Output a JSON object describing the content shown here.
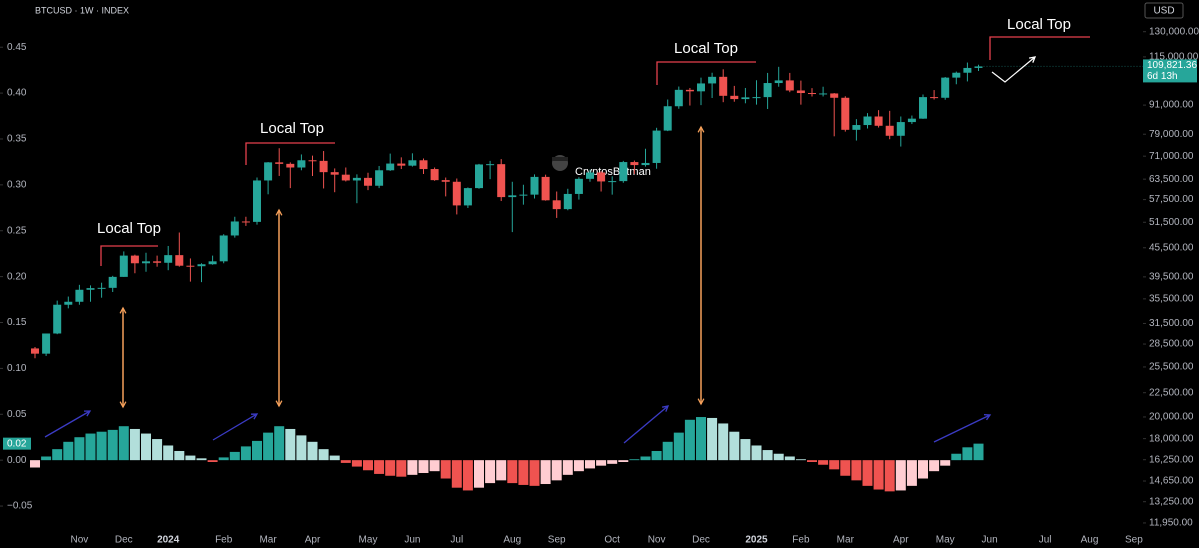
{
  "chart_data": {
    "type": "candlestick",
    "title": "BTCUSD · 1W · INDEX",
    "currency": "USD",
    "categories": [
      null,
      null,
      null,
      null,
      "Nov",
      null,
      null,
      null,
      "Dec",
      null,
      null,
      null,
      "2024",
      null,
      null,
      null,
      null,
      "Feb",
      null,
      null,
      null,
      "Mar",
      null,
      null,
      null,
      "Apr",
      null,
      null,
      null,
      null,
      "May",
      null,
      null,
      null,
      "Jun",
      null,
      null,
      null,
      "Jul",
      null,
      null,
      null,
      null,
      "Aug",
      null,
      null,
      null,
      "Sep",
      null,
      null,
      null,
      null,
      "Oct",
      null,
      null,
      null,
      "Nov",
      null,
      null,
      null,
      "Dec",
      null,
      null,
      null,
      null,
      "2025",
      null,
      null,
      null,
      "Feb",
      null,
      null,
      null,
      "Mar",
      null,
      null,
      null,
      null,
      "Apr",
      null,
      null,
      null,
      "May",
      null,
      null,
      null,
      "Jun",
      null,
      null,
      null,
      null,
      "Jul",
      null,
      null,
      null,
      "Aug",
      null,
      null,
      null,
      "Sep"
    ],
    "open": [
      27900,
      27200,
      30000,
      34500,
      35000,
      37100,
      37400,
      37450,
      39500,
      43800,
      42200,
      42600,
      42300,
      43900,
      41700,
      41600,
      42000,
      42600,
      48300,
      51700,
      51600,
      63100,
      68900,
      68400,
      67200,
      69600,
      69400,
      65700,
      64900,
      63100,
      63900,
      61500,
      66300,
      68500,
      67800,
      69600,
      66700,
      63200,
      62700,
      55900,
      60800,
      68200,
      68300,
      58200,
      58700,
      58900,
      64200,
      57300,
      54900,
      59100,
      63600,
      65600,
      62800,
      62900,
      69000,
      68000,
      68700,
      80400,
      90500,
      98000,
      97300,
      101100,
      104400,
      95200,
      93700,
      94500,
      94600,
      101300,
      102600,
      97700,
      96500,
      96100,
      96300,
      94300,
      80700,
      82600,
      86100,
      82300,
      78400,
      83800,
      85200,
      94600,
      94300,
      104000,
      106500,
      109000,
      null,
      null,
      null,
      null,
      null,
      null,
      null,
      null,
      null,
      null,
      null,
      null,
      null,
      null
    ],
    "high": [
      28100,
      30000,
      35200,
      35900,
      38000,
      37900,
      38400,
      39700,
      44700,
      44000,
      44400,
      43800,
      45900,
      49000,
      43200,
      42200,
      43800,
      48600,
      52900,
      52900,
      64000,
      69000,
      73800,
      68900,
      71600,
      71200,
      72800,
      66900,
      67200,
      65000,
      65500,
      67700,
      71900,
      70600,
      72000,
      70200,
      67200,
      64000,
      63700,
      61000,
      68400,
      69400,
      70000,
      62700,
      61800,
      65000,
      64900,
      59800,
      60600,
      64100,
      66500,
      66000,
      64400,
      69400,
      69500,
      73600,
      81500,
      93500,
      99600,
      98900,
      104000,
      106500,
      108300,
      99900,
      98900,
      102700,
      106400,
      109600,
      106400,
      102500,
      98800,
      99500,
      96500,
      95000,
      85000,
      87500,
      88800,
      88500,
      86100,
      86500,
      95800,
      97900,
      104300,
      107100,
      111900,
      110700,
      null,
      null,
      null,
      null,
      null,
      null,
      null,
      null,
      null,
      null,
      null,
      null,
      null,
      null
    ],
    "low": [
      26600,
      26900,
      29900,
      33900,
      34500,
      35000,
      35700,
      36700,
      39500,
      40200,
      40500,
      41500,
      40800,
      41500,
      38600,
      38500,
      41900,
      42200,
      47800,
      50600,
      50900,
      59000,
      64500,
      60800,
      66300,
      64500,
      60700,
      59600,
      62800,
      56500,
      60200,
      60800,
      66100,
      66700,
      67500,
      65100,
      63000,
      58400,
      53500,
      55200,
      60600,
      63500,
      57100,
      49100,
      56100,
      57800,
      57200,
      52600,
      54600,
      57500,
      62700,
      59800,
      58900,
      62400,
      65100,
      67500,
      66800,
      80200,
      89400,
      90800,
      91000,
      94200,
      92300,
      92500,
      91800,
      91200,
      89300,
      99500,
      96900,
      91200,
      94900,
      94900,
      78200,
      80000,
      76600,
      81200,
      81600,
      77100,
      74400,
      83000,
      85100,
      93500,
      93400,
      100700,
      102100,
      107400,
      null,
      null,
      null,
      null,
      null,
      null,
      null,
      null,
      null,
      null,
      null,
      null,
      null,
      null
    ],
    "close": [
      27200,
      30000,
      34500,
      35000,
      37100,
      37400,
      37450,
      39500,
      43800,
      42200,
      42600,
      42300,
      43900,
      41700,
      41600,
      42000,
      42600,
      48300,
      51700,
      51600,
      63100,
      68900,
      68400,
      67200,
      69600,
      69400,
      65700,
      64900,
      63100,
      63900,
      61500,
      66300,
      68500,
      67800,
      69600,
      66700,
      63200,
      62700,
      55900,
      60800,
      68200,
      68300,
      58200,
      58700,
      58900,
      64200,
      57300,
      54900,
      59100,
      63600,
      65600,
      62800,
      62900,
      69000,
      68000,
      68700,
      80400,
      90500,
      98000,
      97300,
      101100,
      104400,
      95200,
      93700,
      94500,
      94600,
      101300,
      102600,
      97700,
      96500,
      96100,
      96300,
      94300,
      80700,
      82600,
      86100,
      82300,
      78400,
      83800,
      85200,
      94600,
      94300,
      104000,
      106500,
      109000,
      109821.36,
      null,
      null,
      null,
      null,
      null,
      null,
      null,
      null,
      null,
      null,
      null,
      null,
      null,
      null
    ],
    "up_color": "#26a69a",
    "down_color": "#ef5350",
    "ylim": [
      11000,
      148000
    ],
    "log_scale": true,
    "yticks": [
      {
        "value": 130000,
        "label": "130,000.00"
      },
      {
        "value": 115000,
        "label": "115,000.00"
      },
      {
        "value": 91000,
        "label": "91,000.00"
      },
      {
        "value": 79000,
        "label": "79,000.00"
      },
      {
        "value": 71000,
        "label": "71,000.00"
      },
      {
        "value": 63500,
        "label": "63,500.00"
      },
      {
        "value": 57500,
        "label": "57,500.00"
      },
      {
        "value": 51500,
        "label": "51,500.00"
      },
      {
        "value": 45500,
        "label": "45,500.00"
      },
      {
        "value": 39500,
        "label": "39,500.00"
      },
      {
        "value": 35500,
        "label": "35,500.00"
      },
      {
        "value": 31500,
        "label": "31,500.00"
      },
      {
        "value": 28500,
        "label": "28,500.00"
      },
      {
        "value": 25500,
        "label": "25,500.00"
      },
      {
        "value": 22500,
        "label": "22,500.00"
      },
      {
        "value": 20000,
        "label": "20,000.00"
      },
      {
        "value": 18000,
        "label": "18,000.00"
      },
      {
        "value": 16250,
        "label": "16,250.00"
      },
      {
        "value": 14650,
        "label": "14,650.00"
      },
      {
        "value": 13250,
        "label": "13,250.00"
      },
      {
        "value": 11950,
        "label": "11,950.00"
      }
    ],
    "last_close_label": "109,821.36",
    "countdown": "6d 13h",
    "histogram": {
      "axis": "y2",
      "values": [
        -0.008,
        0.004,
        0.012,
        0.02,
        0.025,
        0.029,
        0.031,
        0.033,
        0.037,
        0.034,
        0.029,
        0.023,
        0.016,
        0.01,
        0.005,
        0.002,
        -0.002,
        0.003,
        0.009,
        0.015,
        0.021,
        0.03,
        0.037,
        0.034,
        0.027,
        0.02,
        0.012,
        0.005,
        -0.003,
        -0.007,
        -0.011,
        -0.015,
        -0.017,
        -0.018,
        -0.016,
        -0.014,
        -0.012,
        -0.02,
        -0.03,
        -0.033,
        -0.03,
        -0.025,
        -0.022,
        -0.025,
        -0.027,
        -0.028,
        -0.026,
        -0.022,
        -0.016,
        -0.012,
        -0.009,
        -0.006,
        -0.004,
        -0.002,
        0.001,
        0.004,
        0.01,
        0.02,
        0.03,
        0.044,
        0.047,
        0.046,
        0.04,
        0.031,
        0.023,
        0.016,
        0.011,
        0.007,
        0.004,
        0.001,
        -0.002,
        -0.005,
        -0.01,
        -0.017,
        -0.022,
        -0.028,
        -0.032,
        -0.034,
        -0.033,
        -0.028,
        -0.02,
        -0.012,
        -0.006,
        0.007,
        0.014,
        0.018,
        null,
        null,
        null,
        null,
        null,
        null,
        null,
        null,
        null,
        null,
        null,
        null,
        null,
        null
      ],
      "colors": [
        "#26a69a",
        "#b2dfdb",
        "#ef5350",
        "#ffcdd2"
      ],
      "last_value_label": "0.02"
    },
    "y2lim": [
      -0.087,
      0.496
    ],
    "y2ticks": [
      0.45,
      {
        "value": 0.4,
        "label": "0.40"
      },
      0.35,
      {
        "value": 0.3,
        "label": "0.30"
      },
      0.25,
      {
        "value": 0.2,
        "label": "0.20"
      },
      0.15,
      {
        "value": 0.1,
        "label": "0.10"
      },
      0.05,
      {
        "value": 0,
        "label": "0.00"
      },
      {
        "value": -0.05,
        "label": "−0.05"
      }
    ],
    "annotations": [
      "Local Top",
      "Local Top",
      "Local Top",
      "Local Top"
    ],
    "watermark": "CryptosBatman"
  }
}
